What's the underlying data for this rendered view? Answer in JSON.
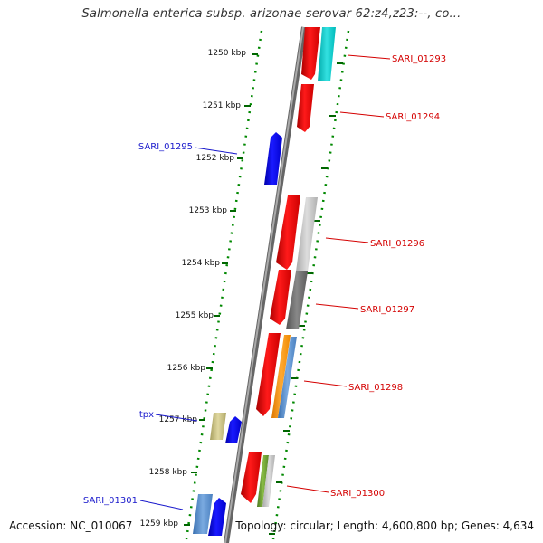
{
  "title": "Salmonella enterica subsp. arizonae serovar 62:z4,z23:--, co...",
  "footer": {
    "accession": "Accession: NC_010067",
    "topology": "Topology: circular; Length: 4,600,800 bp; Genes: 4,634"
  },
  "ticks": [
    "1250 kbp",
    "1251 kbp",
    "1252 kbp",
    "1253 kbp",
    "1254 kbp",
    "1255 kbp",
    "1256 kbp",
    "1257 kbp",
    "1258 kbp",
    "1259 kbp"
  ],
  "gene_labels": [
    {
      "text": "SARI_01293",
      "strand": "forward",
      "color": "#d40000"
    },
    {
      "text": "SARI_01294",
      "strand": "forward",
      "color": "#d40000"
    },
    {
      "text": "SARI_01295",
      "strand": "reverse",
      "color": "#1a1acc"
    },
    {
      "text": "SARI_01296",
      "strand": "forward",
      "color": "#d40000"
    },
    {
      "text": "SARI_01297",
      "strand": "forward",
      "color": "#d40000"
    },
    {
      "text": "SARI_01298",
      "strand": "forward",
      "color": "#d40000"
    },
    {
      "text": "tpx",
      "strand": "reverse",
      "color": "#1a1acc"
    },
    {
      "text": "SARI_01300",
      "strand": "forward",
      "color": "#d40000"
    },
    {
      "text": "SARI_01301",
      "strand": "reverse",
      "color": "#1a1acc"
    }
  ],
  "colors": {
    "forward_gene": "#ff0000",
    "reverse_gene": "#0000ff",
    "tick_mark": "#006600",
    "dots": "#008800",
    "backbone": "#777777",
    "cyan_feature": "#00cccc",
    "light_gray_feature": "#bbbbbb",
    "dark_gray_feature": "#666666",
    "orange_feature": "#ff8800",
    "steel_blue_feature": "#4a86c8",
    "olive_feature": "#c8c080",
    "green_feature": "#669933"
  }
}
